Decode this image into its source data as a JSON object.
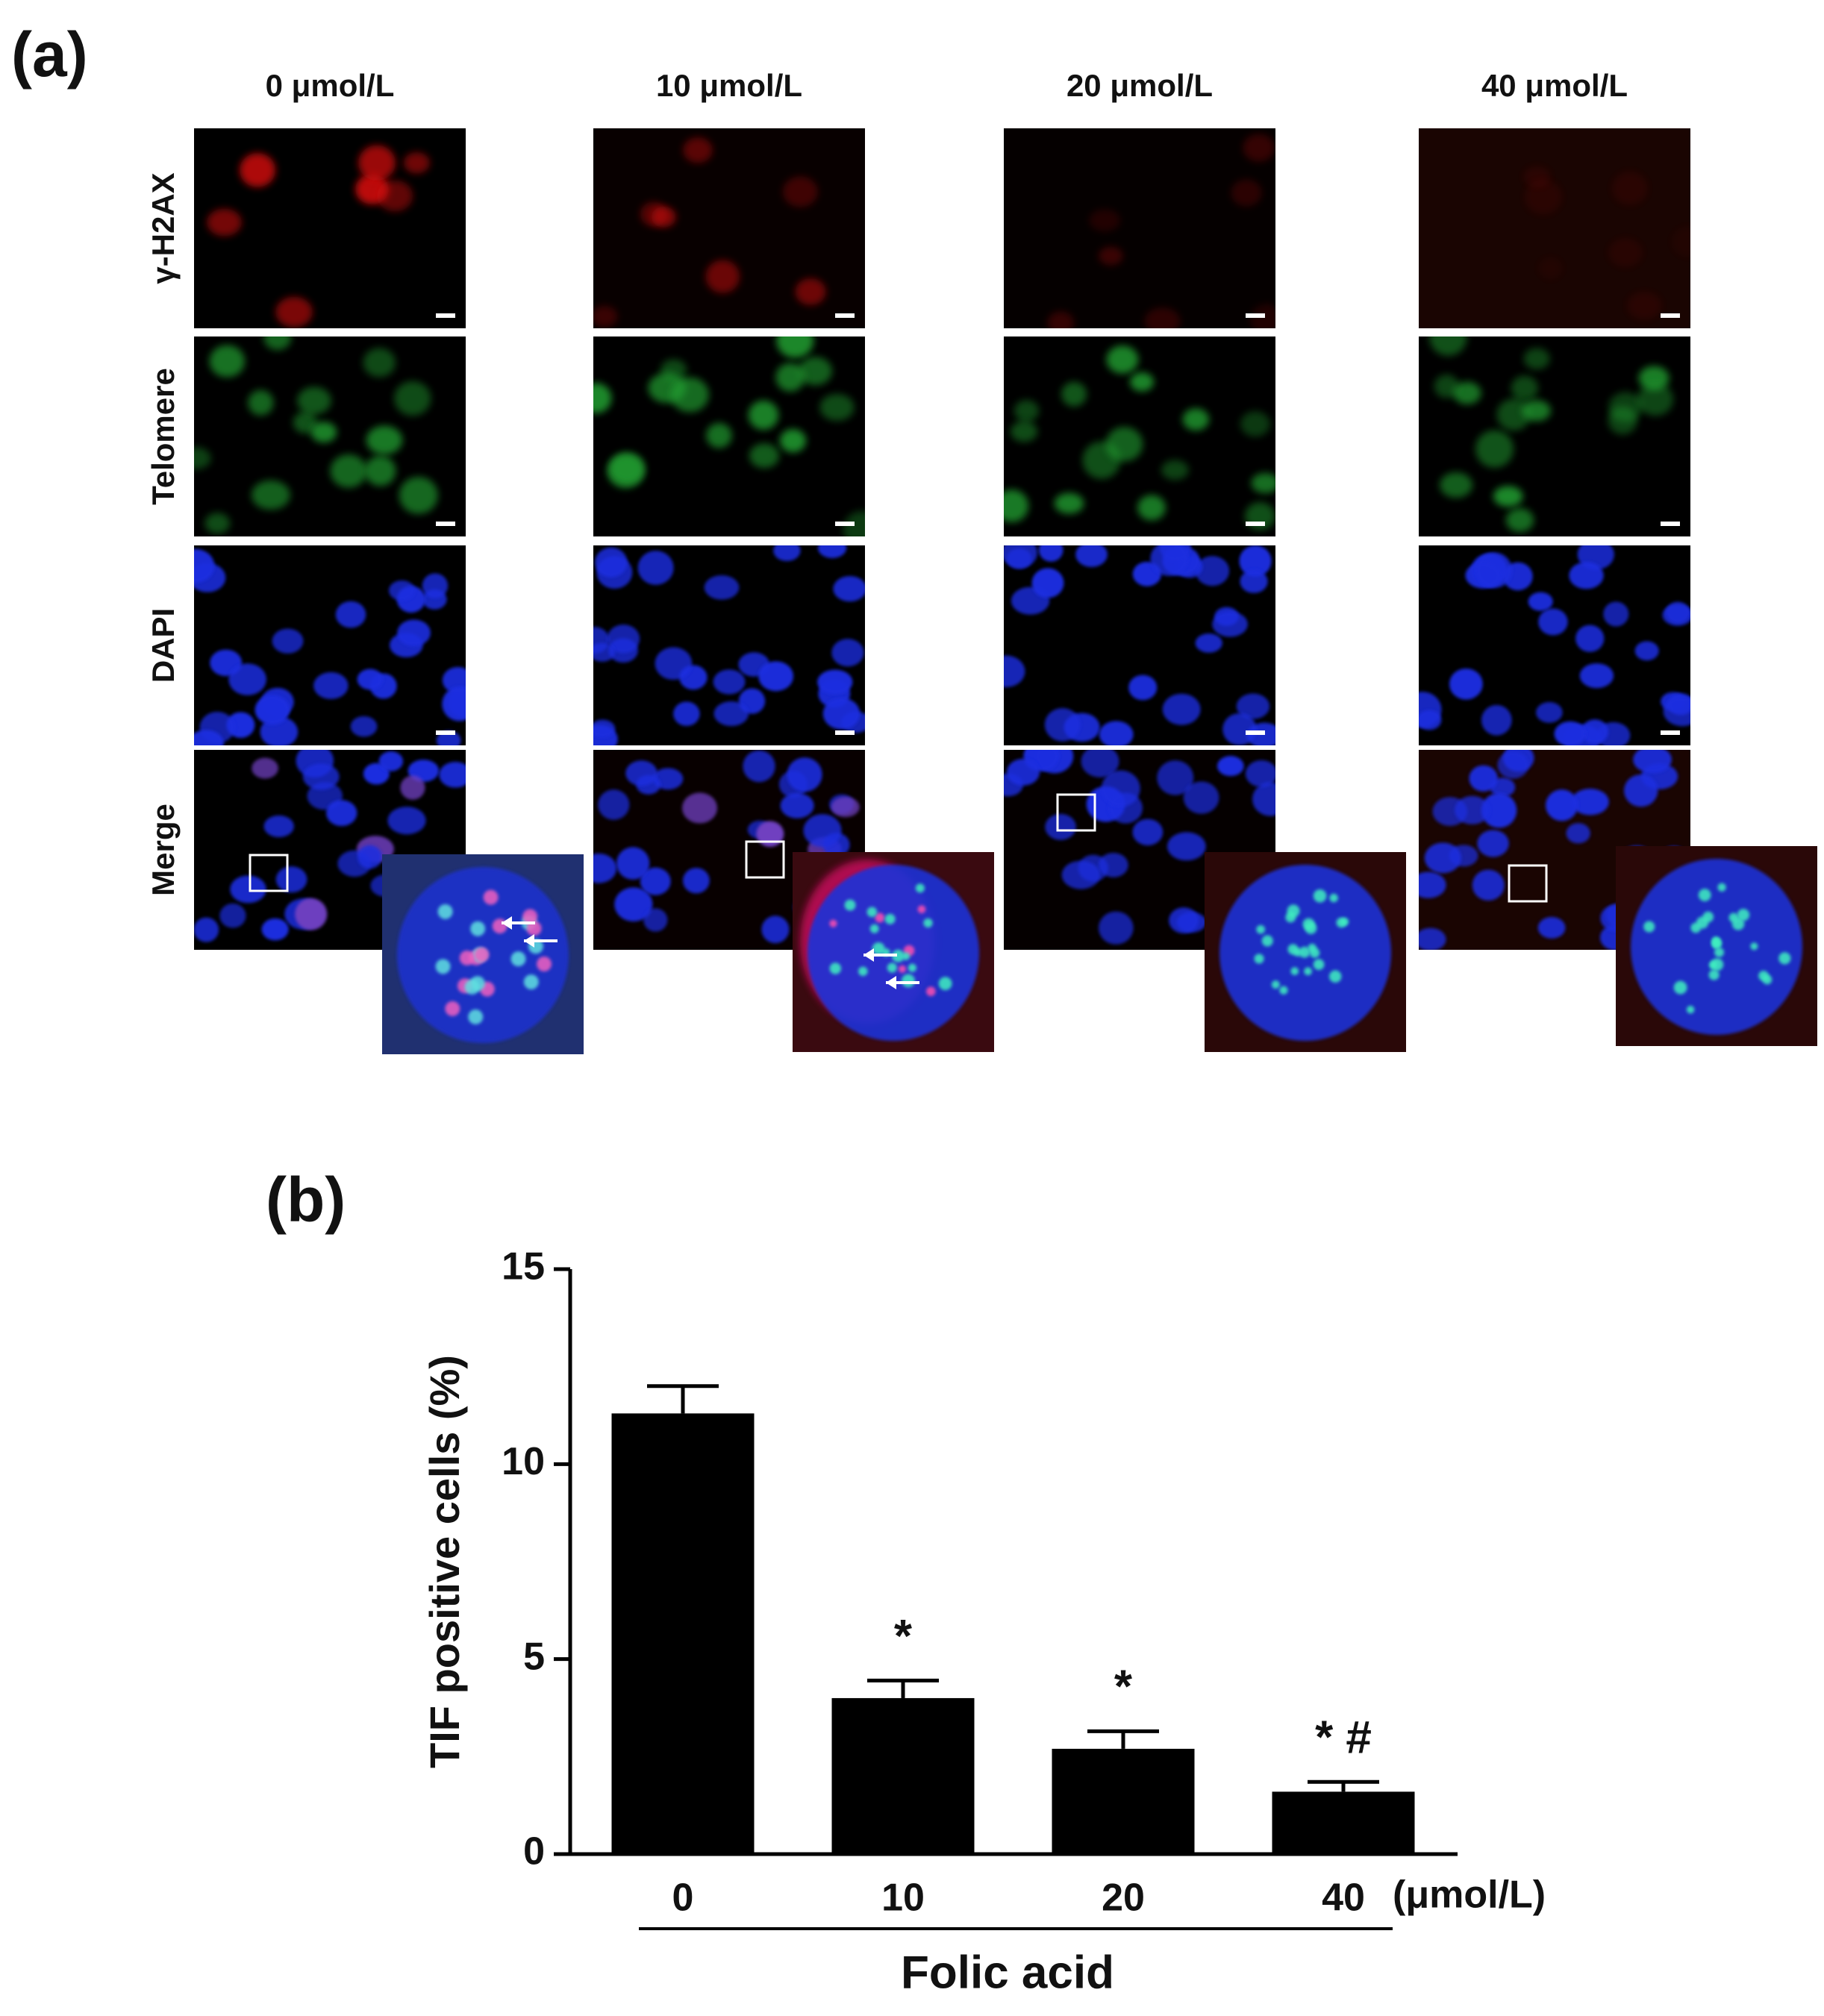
{
  "panel_a": {
    "label": "(a)",
    "columns": [
      "0 μmol/L",
      "10 μmol/L",
      "20 μmol/L",
      "40 μmol/L"
    ],
    "rows": [
      "γ-H2AX",
      "Telomere",
      "DAPI",
      "Merge"
    ]
  },
  "chart_data": {
    "type": "bar",
    "panel_label": "(b)",
    "ylabel": "TIF positive cells (%)",
    "xlabel": "Folic acid",
    "x_unit": "(μmol/L)",
    "categories": [
      "0",
      "10",
      "20",
      "40"
    ],
    "values": [
      11.3,
      4.0,
      2.7,
      1.6
    ],
    "errors": [
      0.7,
      0.45,
      0.45,
      0.25
    ],
    "annotations": [
      null,
      "*",
      "*",
      "* #"
    ],
    "color": "#000000",
    "ylim": [
      0,
      15
    ],
    "yticks": [
      0,
      5,
      10,
      15
    ],
    "grid": false
  }
}
